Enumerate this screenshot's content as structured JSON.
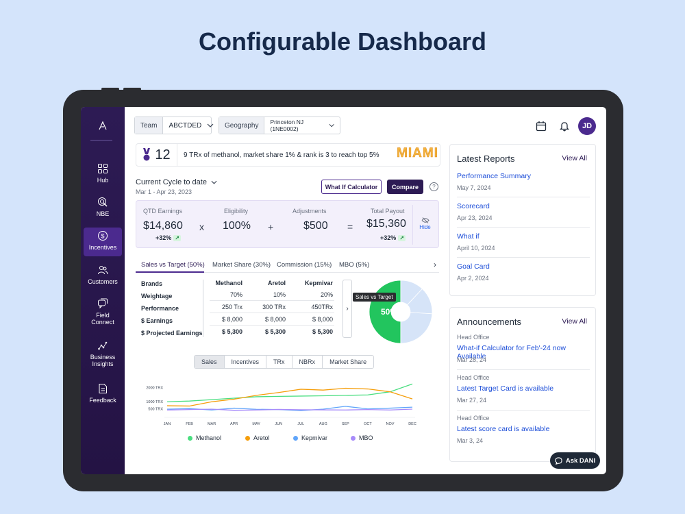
{
  "headline": "Configurable Dashboard",
  "sidebar": {
    "items": [
      {
        "label": "Hub",
        "icon": "grid-icon"
      },
      {
        "label": "NBE",
        "icon": "target-cursor-icon"
      },
      {
        "label": "Incentives",
        "icon": "dollar-icon"
      },
      {
        "label": "Customers",
        "icon": "people-icon"
      },
      {
        "label": "Field Connect",
        "icon": "chat-icon"
      },
      {
        "label": "Business Insights",
        "icon": "scatter-icon"
      },
      {
        "label": "Feedback",
        "icon": "document-icon"
      }
    ]
  },
  "filters": {
    "team_label": "Team",
    "team_value": "ABCTDED",
    "geo_label": "Geography",
    "geo_value": "Princeton NJ (1NE0002)"
  },
  "avatar": "JD",
  "banner": {
    "rank": "12",
    "message": "9 TRx of methanol, market share 1% & rank is 3 to reach top 5%",
    "badge": "MIAMI"
  },
  "cycle": {
    "title": "Current Cycle to date",
    "range": "Mar 1 - Apr 23, 2023",
    "what_if_btn": "What If Calculator",
    "compare_btn": "Compare",
    "help": "?"
  },
  "earnings": {
    "qtd_label": "QTD Earnings",
    "qtd_value": "$14,860",
    "qtd_delta": "+32%",
    "times": "x",
    "elig_label": "Eligibility",
    "elig_value": "100%",
    "plus": "+",
    "adj_label": "Adjustments",
    "adj_value": "$500",
    "equals": "=",
    "payout_label": "Total Payout",
    "payout_value": "$15,360",
    "payout_delta": "+32%",
    "hide": "Hide"
  },
  "tabs": [
    "Sales vs Target  (50%)",
    "Market Share (30%)",
    "Commission (15%)",
    "MBO (5%)"
  ],
  "brand_table": {
    "row_labels": [
      "Brands",
      "Weightage",
      "Performance",
      "$ Earnings",
      "$ Projected Earnings"
    ],
    "columns": [
      "Methanol",
      "Aretol",
      "Kepmivar"
    ],
    "rows": [
      [
        "70%",
        "10%",
        "20%"
      ],
      [
        "250 Trx",
        "300 TRx",
        "450TRx"
      ],
      [
        "$ 8,000",
        "$ 8,000",
        "$ 8,000"
      ],
      [
        "$ 5,300",
        "$ 5,300",
        "$ 5,300"
      ]
    ]
  },
  "donut": {
    "tooltip": "Sales vs Target",
    "center": "50%",
    "value_pct": 50,
    "colors": {
      "achieved": "#22c55e",
      "remaining": "#d6e4f8"
    }
  },
  "chart_tabs": [
    "Sales",
    "Incentives",
    "TRx",
    "NBRx",
    "Market Share"
  ],
  "chart_data": {
    "type": "line",
    "x": [
      "JAN",
      "FEB",
      "MAR",
      "APR",
      "MAY",
      "JUN",
      "JUL",
      "AUG",
      "SEP",
      "OCT",
      "NOV",
      "DEC"
    ],
    "y_ticks": [
      "2000 TRX",
      "1000 TRX",
      "500 TRX"
    ],
    "ylim": [
      0,
      2600
    ],
    "series": [
      {
        "name": "Methanol",
        "color": "#4ade80",
        "values": [
          1000,
          1050,
          1150,
          1250,
          1350,
          1380,
          1400,
          1420,
          1450,
          1480,
          1700,
          2250
        ]
      },
      {
        "name": "Aretol",
        "color": "#f59e0b",
        "values": [
          720,
          700,
          1000,
          1180,
          1450,
          1650,
          1880,
          1820,
          1950,
          1900,
          1700,
          1200
        ]
      },
      {
        "name": "Kepmivar",
        "color": "#60a5fa",
        "values": [
          480,
          520,
          420,
          550,
          470,
          450,
          380,
          480,
          680,
          500,
          550,
          620
        ]
      },
      {
        "name": "MBO",
        "color": "#a78bfa",
        "values": [
          420,
          450,
          480,
          400,
          420,
          460,
          440,
          430,
          420,
          450,
          420,
          480
        ]
      }
    ]
  },
  "reports": {
    "title": "Latest Reports",
    "view_all": "View All",
    "items": [
      {
        "title": "Performance Summary",
        "date": "May 7, 2024"
      },
      {
        "title": "Scorecard",
        "date": "Apr 23, 2024"
      },
      {
        "title": "What if",
        "date": "April 10, 2024"
      },
      {
        "title": "Goal Card",
        "date": "Apr 2, 2024"
      }
    ]
  },
  "announcements": {
    "title": "Announcements",
    "view_all": "View All",
    "items": [
      {
        "source": "Head Office",
        "title": "What-if Calculator for Feb'-24 now Available",
        "date": "Mar 28, 24"
      },
      {
        "source": "Head Office",
        "title": "Latest Target Card is available",
        "date": "Mar 27, 24"
      },
      {
        "source": "Head Office",
        "title": "Latest score card is available",
        "date": "Mar 3, 24"
      }
    ]
  },
  "ask_dani": "Ask DANI"
}
